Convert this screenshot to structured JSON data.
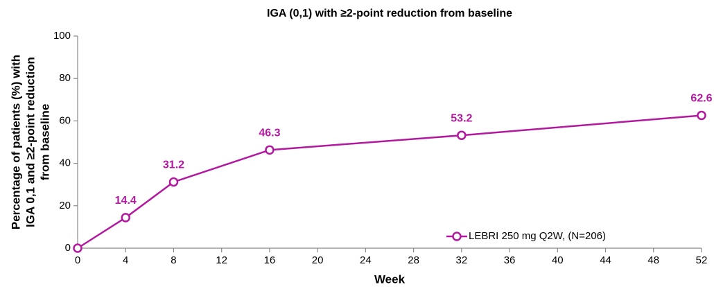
{
  "chart_data": {
    "type": "line",
    "title": "IGA (0,1) with ≥2-point reduction from baseline",
    "ylabel": [
      "Percentage of patients (%) with",
      "IGA 0,1 and ≥2-point reduction",
      "from baseline"
    ],
    "xlabel": "Week",
    "x": [
      0,
      4,
      8,
      16,
      32,
      52
    ],
    "series": [
      {
        "name": "LEBRI 250 mg Q2W, (N=206)",
        "color": "#b3199e",
        "values": [
          0,
          14.4,
          31.2,
          46.3,
          53.2,
          62.6
        ],
        "value_labels": [
          null,
          "14.4",
          "31.2",
          "46.3",
          "53.2",
          "62.6"
        ]
      }
    ],
    "xlim": [
      0,
      52
    ],
    "xticks": [
      0,
      4,
      8,
      12,
      16,
      20,
      24,
      28,
      32,
      36,
      40,
      44,
      48,
      52
    ],
    "ylim": [
      0,
      100
    ],
    "yticks": [
      0,
      20,
      40,
      60,
      80,
      100
    ],
    "grid": false,
    "legend": "lower right"
  }
}
